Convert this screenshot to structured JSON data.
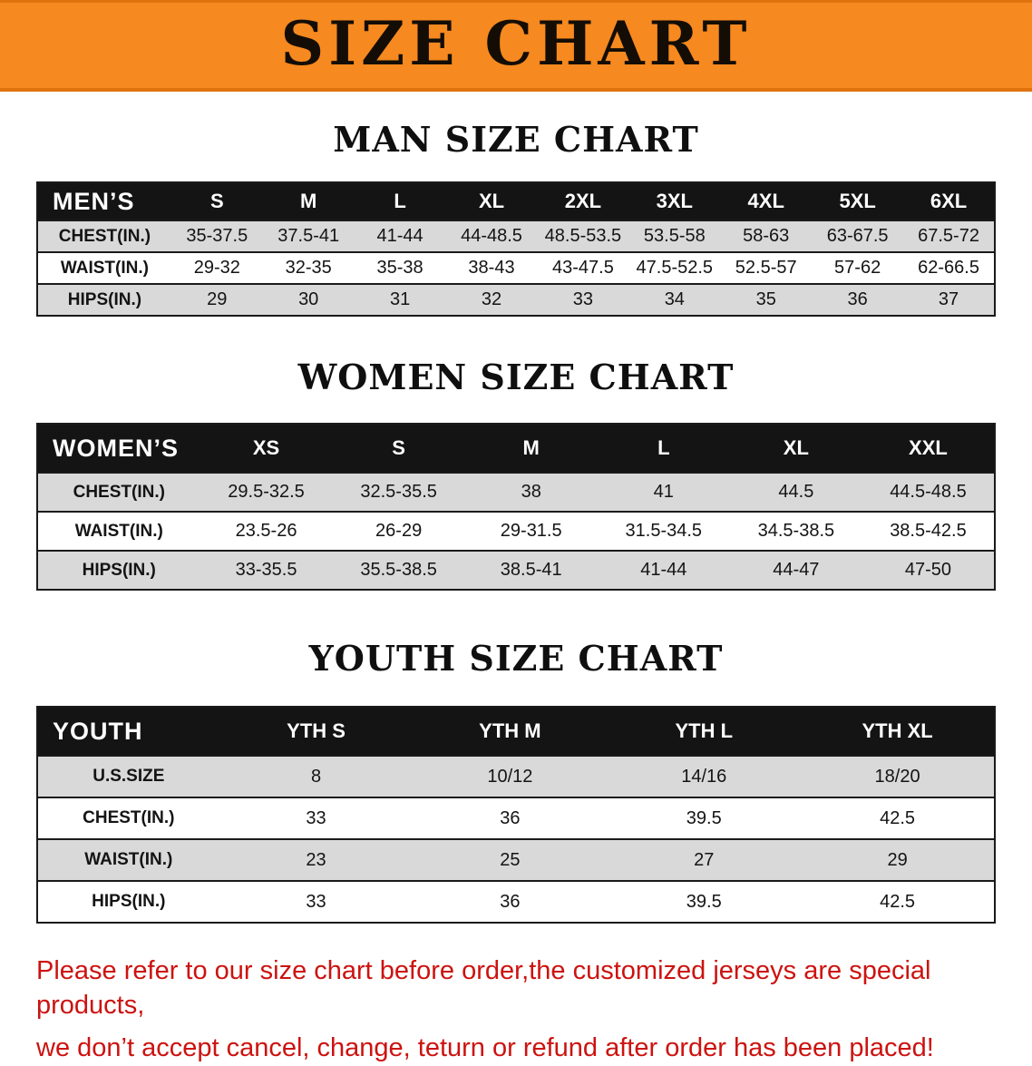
{
  "banner": {
    "title": "SIZE CHART"
  },
  "colors": {
    "banner_bg": "#f6891f",
    "table_header_bg": "#141414",
    "row_alt": "#d9d9d9",
    "note_red": "#cc1310"
  },
  "men": {
    "heading": "MAN SIZE CHART",
    "columns": [
      "MEN’S",
      "S",
      "M",
      "L",
      "XL",
      "2XL",
      "3XL",
      "4XL",
      "5XL",
      "6XL"
    ],
    "rows": [
      [
        "CHEST(IN.)",
        "35-37.5",
        "37.5-41",
        "41-44",
        "44-48.5",
        "48.5-53.5",
        "53.5-58",
        "58-63",
        "63-67.5",
        "67.5-72"
      ],
      [
        "WAIST(IN.)",
        "29-32",
        "32-35",
        "35-38",
        "38-43",
        "43-47.5",
        "47.5-52.5",
        "52.5-57",
        "57-62",
        "62-66.5"
      ],
      [
        "HIPS(IN.)",
        "29",
        "30",
        "31",
        "32",
        "33",
        "34",
        "35",
        "36",
        "37"
      ]
    ]
  },
  "women": {
    "heading": "WOMEN SIZE CHART",
    "columns": [
      "WOMEN’S",
      "XS",
      "S",
      "M",
      "L",
      "XL",
      "XXL"
    ],
    "rows": [
      [
        "CHEST(IN.)",
        "29.5-32.5",
        "32.5-35.5",
        "38",
        "41",
        "44.5",
        "44.5-48.5"
      ],
      [
        "WAIST(IN.)",
        "23.5-26",
        "26-29",
        "29-31.5",
        "31.5-34.5",
        "34.5-38.5",
        "38.5-42.5"
      ],
      [
        "HIPS(IN.)",
        "33-35.5",
        "35.5-38.5",
        "38.5-41",
        "41-44",
        "44-47",
        "47-50"
      ]
    ]
  },
  "youth": {
    "heading": "YOUTH SIZE CHART",
    "columns": [
      "YOUTH",
      "YTH S",
      "YTH M",
      "YTH L",
      "YTH XL"
    ],
    "rows": [
      [
        "U.S.SIZE",
        "8",
        "10/12",
        "14/16",
        "18/20"
      ],
      [
        "CHEST(IN.)",
        "33",
        "36",
        "39.5",
        "42.5"
      ],
      [
        "WAIST(IN.)",
        "23",
        "25",
        "27",
        "29"
      ],
      [
        "HIPS(IN.)",
        "33",
        "36",
        "39.5",
        "42.5"
      ]
    ]
  },
  "note": {
    "line1": "Please refer to our size chart before order,the customized jerseys are special products,",
    "line2": "we don’t accept cancel, change, teturn or refund after order has been placed!"
  }
}
